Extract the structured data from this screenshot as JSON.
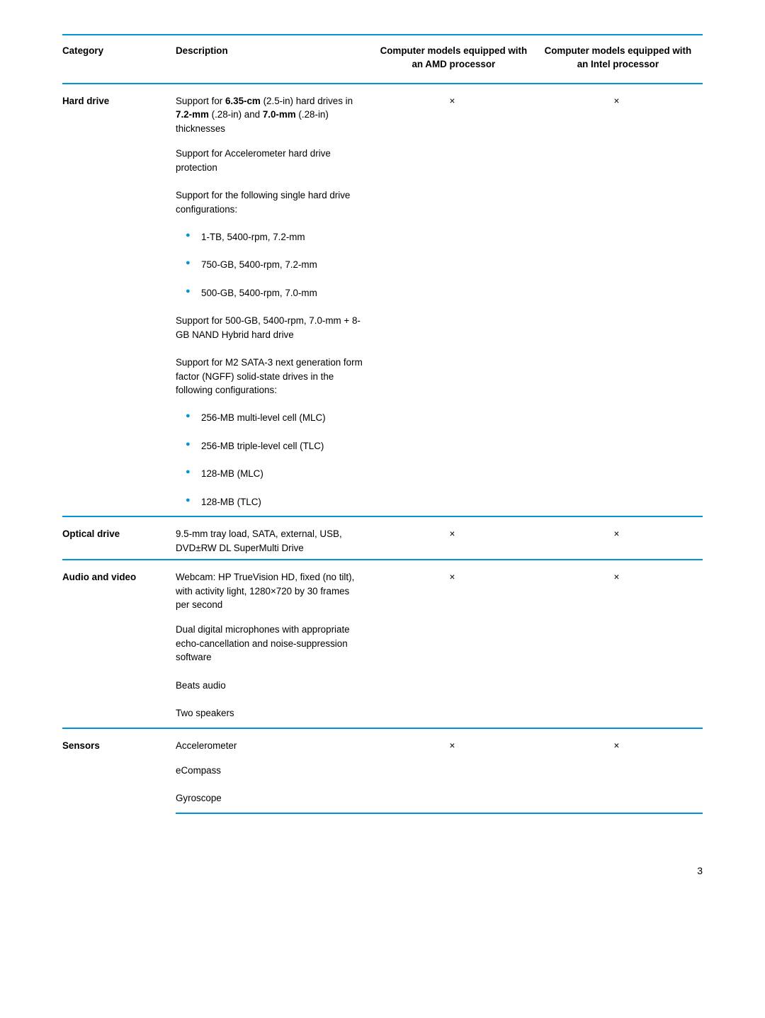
{
  "headers": {
    "category": "Category",
    "description": "Description",
    "amd": "Computer models equipped with an AMD processor",
    "intel": "Computer models equipped with an Intel processor"
  },
  "marks": {
    "x": "×"
  },
  "hard_drive": {
    "label": "Hard drive",
    "p1_a": "Support for ",
    "p1_b": "6.35-cm",
    "p1_c": " (2.5-in) hard drives in ",
    "p1_d": "7.2-mm",
    "p1_e": " (.28-in) and ",
    "p1_f": "7.0-mm",
    "p1_g": " (.28-in) thicknesses",
    "p2": "Support for Accelerometer hard drive protection",
    "p3": "Support for the following single hard drive configurations:",
    "b1": "1-TB, 5400-rpm, 7.2-mm",
    "b2": "750-GB, 5400-rpm, 7.2-mm",
    "b3": "500-GB, 5400-rpm, 7.0-mm",
    "p4": "Support for 500-GB, 5400-rpm, 7.0-mm + 8-GB NAND Hybrid hard drive",
    "p5": "Support for M2 SATA-3 next generation form factor (NGFF) solid-state drives in the following configurations:",
    "b4": "256-MB multi-level cell (MLC)",
    "b5": "256-MB triple-level cell (TLC)",
    "b6": "128-MB (MLC)",
    "b7": "128-MB (TLC)"
  },
  "optical_drive": {
    "label": "Optical drive",
    "p1": "9.5-mm tray load, SATA, external, USB, DVD±RW DL SuperMulti Drive"
  },
  "audio_video": {
    "label": "Audio and video",
    "p1": "Webcam: HP TrueVision HD, fixed (no tilt), with activity light, 1280×720 by 30 frames per second",
    "p2": "Dual digital microphones with appropriate echo-cancellation and noise-suppression software",
    "p3": "Beats audio",
    "p4": "Two speakers"
  },
  "sensors": {
    "label": "Sensors",
    "p1": "Accelerometer",
    "p2": "eCompass",
    "p3": "Gyroscope"
  },
  "page_number": "3"
}
